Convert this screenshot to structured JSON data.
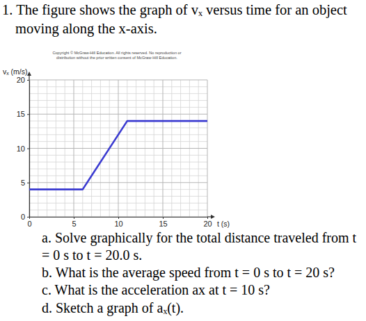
{
  "header": {
    "lines": [
      "1. The figure shows the graph of vₓ versus time for an object",
      "moving along the x-axis."
    ]
  },
  "copyright": [
    "Copyright © McGraw-Hill Education. All rights reserved. No reproduction or",
    "distribution without the prior written consent of McGraw-Hill Education."
  ],
  "chart_data": {
    "type": "line",
    "x_label": "t (s)",
    "y_label": "vₓ (m/s)",
    "x": [
      0,
      6,
      11,
      20
    ],
    "values": [
      4,
      4,
      14,
      14
    ],
    "color": "#3a3ad0",
    "xlim": [
      0,
      20
    ],
    "ylim": [
      0,
      20
    ],
    "xticks": [
      0,
      5,
      10,
      15,
      20
    ],
    "yticks": [
      0,
      5,
      10,
      15,
      20
    ],
    "grid": true
  },
  "questions": [
    "a. Solve graphically for the total distance traveled from t",
    "= 0 s to t = 20.0 s.",
    "b. What is the average speed from t = 0 s to t = 20 s?",
    "c. What is the acceleration ax at t = 10 s?",
    "d. Sketch a graph of aₓ(t)."
  ]
}
